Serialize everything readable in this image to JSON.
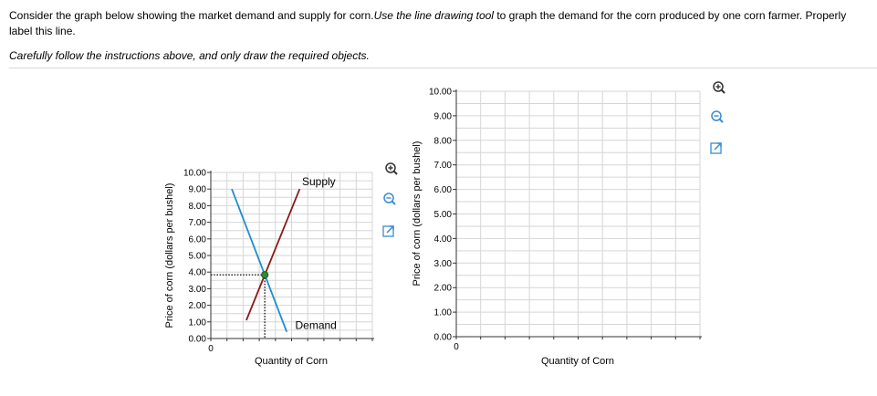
{
  "instructions": {
    "part1": "Consider the graph below showing the market demand and supply for corn.",
    "part2": "Use the line drawing tool",
    "part3": " to graph the demand for the corn produced by one corn farmer. Properly label this line.",
    "note": "Carefully follow the instructions above, and only draw the required objects."
  },
  "left_chart": {
    "ylabel": "Price of corn (dollars per bushel)",
    "xlabel": "Quantity of Corn",
    "x_tick": "0",
    "y_ticks": [
      "0.00",
      "1.00",
      "2.00",
      "3.00",
      "4.00",
      "5.00",
      "6.00",
      "7.00",
      "8.00",
      "9.00",
      "10.00"
    ],
    "supply_label": "Supply",
    "demand_label": "Demand"
  },
  "right_chart": {
    "ylabel": "Price of corn (dollars per bushel)",
    "xlabel": "Quantity of Corn",
    "x_tick": "0",
    "y_ticks": [
      "0.00",
      "1.00",
      "2.00",
      "3.00",
      "4.00",
      "5.00",
      "6.00",
      "7.00",
      "8.00",
      "9.00",
      "10.00"
    ]
  },
  "icons": {
    "zoom_in": "zoom-in-icon",
    "zoom_out": "zoom-out-icon",
    "expand": "expand-icon"
  },
  "colors": {
    "supply": "#8b1a1a",
    "demand": "#1a8fd0",
    "equilibrium": "#2e8b2e",
    "grid": "#d6d6d6"
  },
  "chart_data": [
    {
      "type": "line",
      "xlabel": "Quantity of Corn",
      "ylabel": "Price of corn (dollars per bushel)",
      "ylim": [
        0,
        10
      ],
      "series": [
        {
          "name": "Supply",
          "points": [
            [
              2.2,
              1.1
            ],
            [
              5.5,
              9.0
            ]
          ]
        },
        {
          "name": "Demand",
          "points": [
            [
              1.3,
              9.0
            ],
            [
              4.7,
              0.4
            ]
          ]
        }
      ],
      "equilibrium": {
        "price": 4.0,
        "label_dotted": true
      }
    },
    {
      "type": "line",
      "xlabel": "Quantity of Corn",
      "ylabel": "Price of corn (dollars per bushel)",
      "ylim": [
        0,
        10
      ],
      "series": []
    }
  ]
}
